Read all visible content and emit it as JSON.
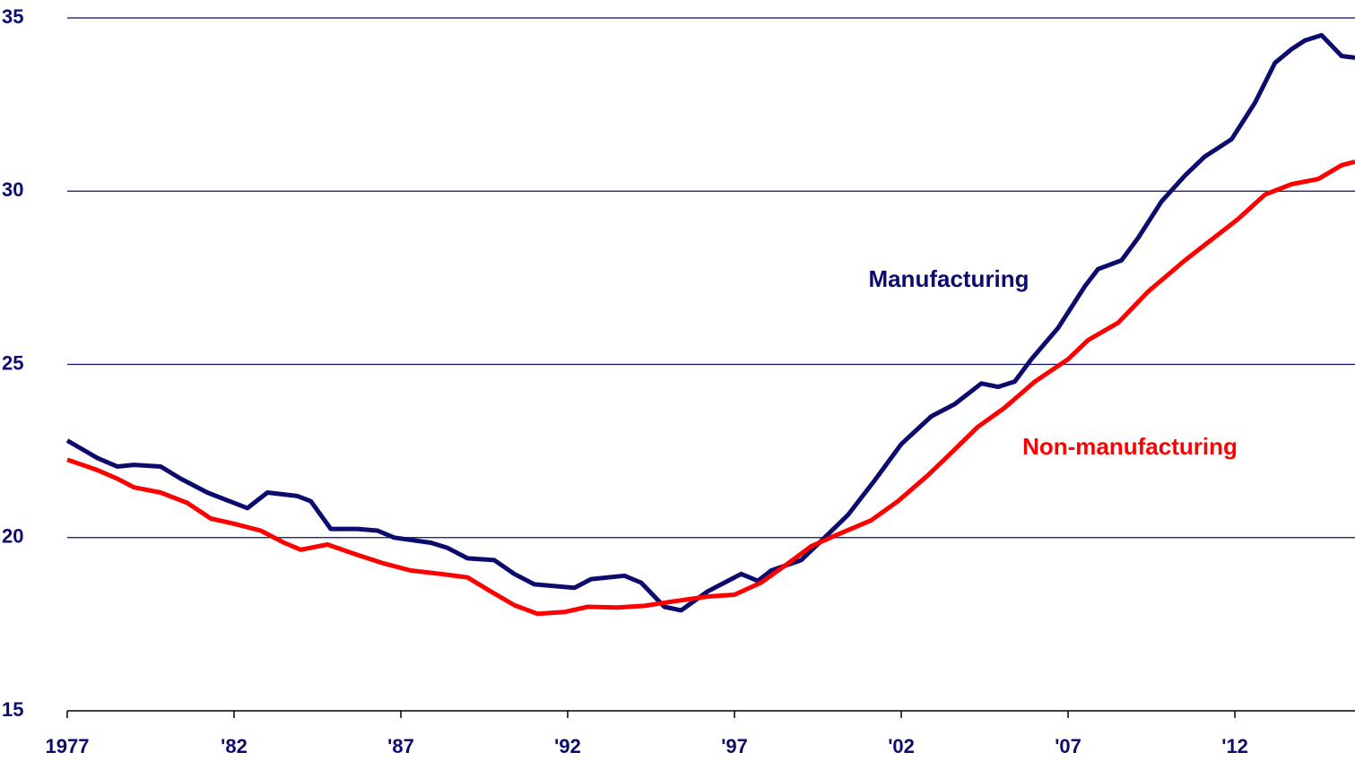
{
  "chart_data": {
    "type": "line",
    "xlim": [
      1977,
      2015.6
    ],
    "xticks": [
      1977,
      {
        "value": 1982,
        "label": "'82"
      },
      {
        "value": 1987,
        "label": "'87"
      },
      {
        "value": 1992,
        "label": "'92"
      },
      {
        "value": 1997,
        "label": "'97"
      },
      {
        "value": 2002,
        "label": "'02"
      },
      {
        "value": 2007,
        "label": "'07"
      },
      {
        "value": 2012,
        "label": "'12"
      }
    ],
    "ylim": [
      15,
      35
    ],
    "yticks": [
      15,
      20,
      25,
      30,
      35
    ],
    "grid": true,
    "series": [
      {
        "name": "Manufacturing",
        "color": "#0c0c6e",
        "x": [
          1977,
          1977.9,
          1978.5,
          1979.0,
          1979.8,
          1980.4,
          1981.2,
          1982.0,
          1982.4,
          1983.0,
          1983.9,
          1984.3,
          1984.9,
          1985.7,
          1986.3,
          1986.8,
          1987.9,
          1988.4,
          1989.0,
          1989.8,
          1990.4,
          1991.0,
          1992.2,
          1992.7,
          1993.7,
          1994.2,
          1994.9,
          1995.4,
          1996.2,
          1996.8,
          1997.2,
          1997.7,
          1998.1,
          1999.0,
          1999.7,
          2000.4,
          2001.2,
          2002.0,
          2002.9,
          2003.6,
          2004.4,
          2004.9,
          2005.4,
          2005.9,
          2006.7,
          2007.5,
          2007.9,
          2008.6,
          2009.1,
          2009.8,
          2010.5,
          2011.1,
          2011.9,
          2012.6,
          2013.2,
          2013.7,
          2014.1,
          2014.6,
          2015.2,
          2015.6
        ],
        "values": [
          22.8,
          22.3,
          22.05,
          22.1,
          22.05,
          21.7,
          21.3,
          21.0,
          20.85,
          21.3,
          21.2,
          21.05,
          20.25,
          20.25,
          20.2,
          20.0,
          19.85,
          19.7,
          19.4,
          19.35,
          18.95,
          18.65,
          18.55,
          18.8,
          18.9,
          18.7,
          18.0,
          17.9,
          18.45,
          18.75,
          18.95,
          18.75,
          19.05,
          19.35,
          20.0,
          20.65,
          21.65,
          22.7,
          23.5,
          23.85,
          24.45,
          24.35,
          24.5,
          25.15,
          26.05,
          27.25,
          27.75,
          28.0,
          28.65,
          29.7,
          30.45,
          31.0,
          31.5,
          32.55,
          33.7,
          34.1,
          34.35,
          34.5,
          33.9,
          33.85
        ]
      },
      {
        "name": "Non-manufacturing",
        "color": "#ff0000",
        "x": [
          1977,
          1977.9,
          1978.5,
          1979.0,
          1979.8,
          1980.6,
          1981.3,
          1982.0,
          1982.8,
          1983.5,
          1984.0,
          1984.8,
          1985.7,
          1986.5,
          1987.3,
          1988.2,
          1989.0,
          1989.6,
          1990.4,
          1991.1,
          1991.9,
          1992.6,
          1993.5,
          1994.3,
          1995.1,
          1996.2,
          1997.0,
          1997.8,
          1998.6,
          1999.3,
          2000.0,
          2001.1,
          2001.9,
          2002.8,
          2003.5,
          2004.3,
          2005.1,
          2006.0,
          2007.0,
          2007.6,
          2008.5,
          2009.4,
          2010.5,
          2011.3,
          2012.1,
          2012.9,
          2013.7,
          2014.5,
          2015.2,
          2015.6
        ],
        "values": [
          22.25,
          21.95,
          21.7,
          21.45,
          21.3,
          21.0,
          20.55,
          20.4,
          20.2,
          19.85,
          19.65,
          19.8,
          19.5,
          19.25,
          19.05,
          18.95,
          18.85,
          18.5,
          18.05,
          17.8,
          17.85,
          18.0,
          17.98,
          18.03,
          18.15,
          18.3,
          18.35,
          18.7,
          19.25,
          19.75,
          20.05,
          20.5,
          21.05,
          21.8,
          22.45,
          23.2,
          23.75,
          24.5,
          25.15,
          25.7,
          26.2,
          27.1,
          28.0,
          28.6,
          29.2,
          29.9,
          30.2,
          30.35,
          30.75,
          30.85
        ]
      }
    ]
  }
}
